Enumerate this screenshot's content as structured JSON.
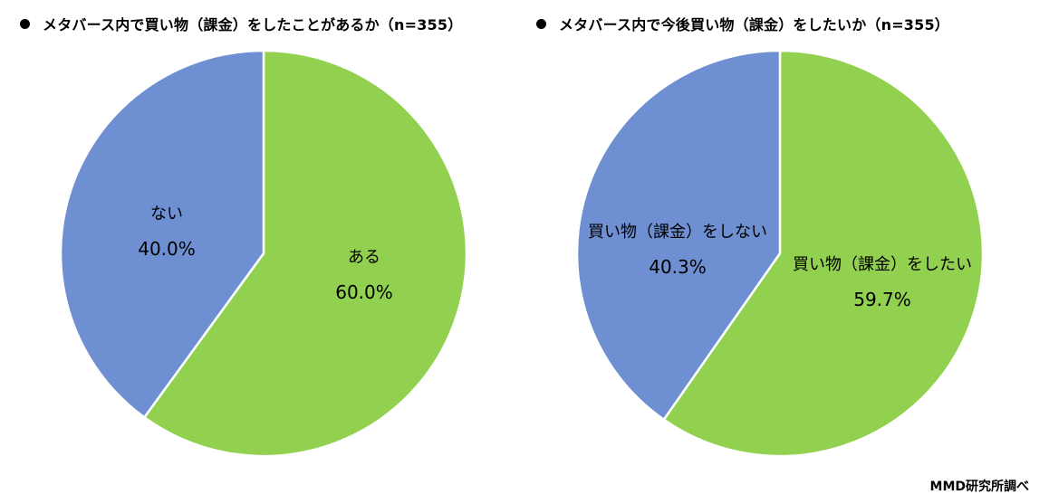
{
  "chart_data": [
    {
      "type": "pie",
      "title": "メタバース内で買い物（課金）をしたことがあるか（n=355）",
      "colors": [
        "#92d050",
        "#6e8fd1"
      ],
      "slices": [
        {
          "label": "ある",
          "value": 60.0,
          "value_label": "60.0%"
        },
        {
          "label": "ない",
          "value": 40.0,
          "value_label": "40.0%"
        }
      ]
    },
    {
      "type": "pie",
      "title": "メタバース内で今後買い物（課金）をしたいか（n=355）",
      "colors": [
        "#92d050",
        "#6e8fd1"
      ],
      "slices": [
        {
          "label": "買い物（課金）をしたい",
          "value": 59.7,
          "value_label": "59.7%"
        },
        {
          "label": "買い物（課金）をしない",
          "value": 40.3,
          "value_label": "40.3%"
        }
      ]
    }
  ],
  "source": "MMD研究所調べ"
}
